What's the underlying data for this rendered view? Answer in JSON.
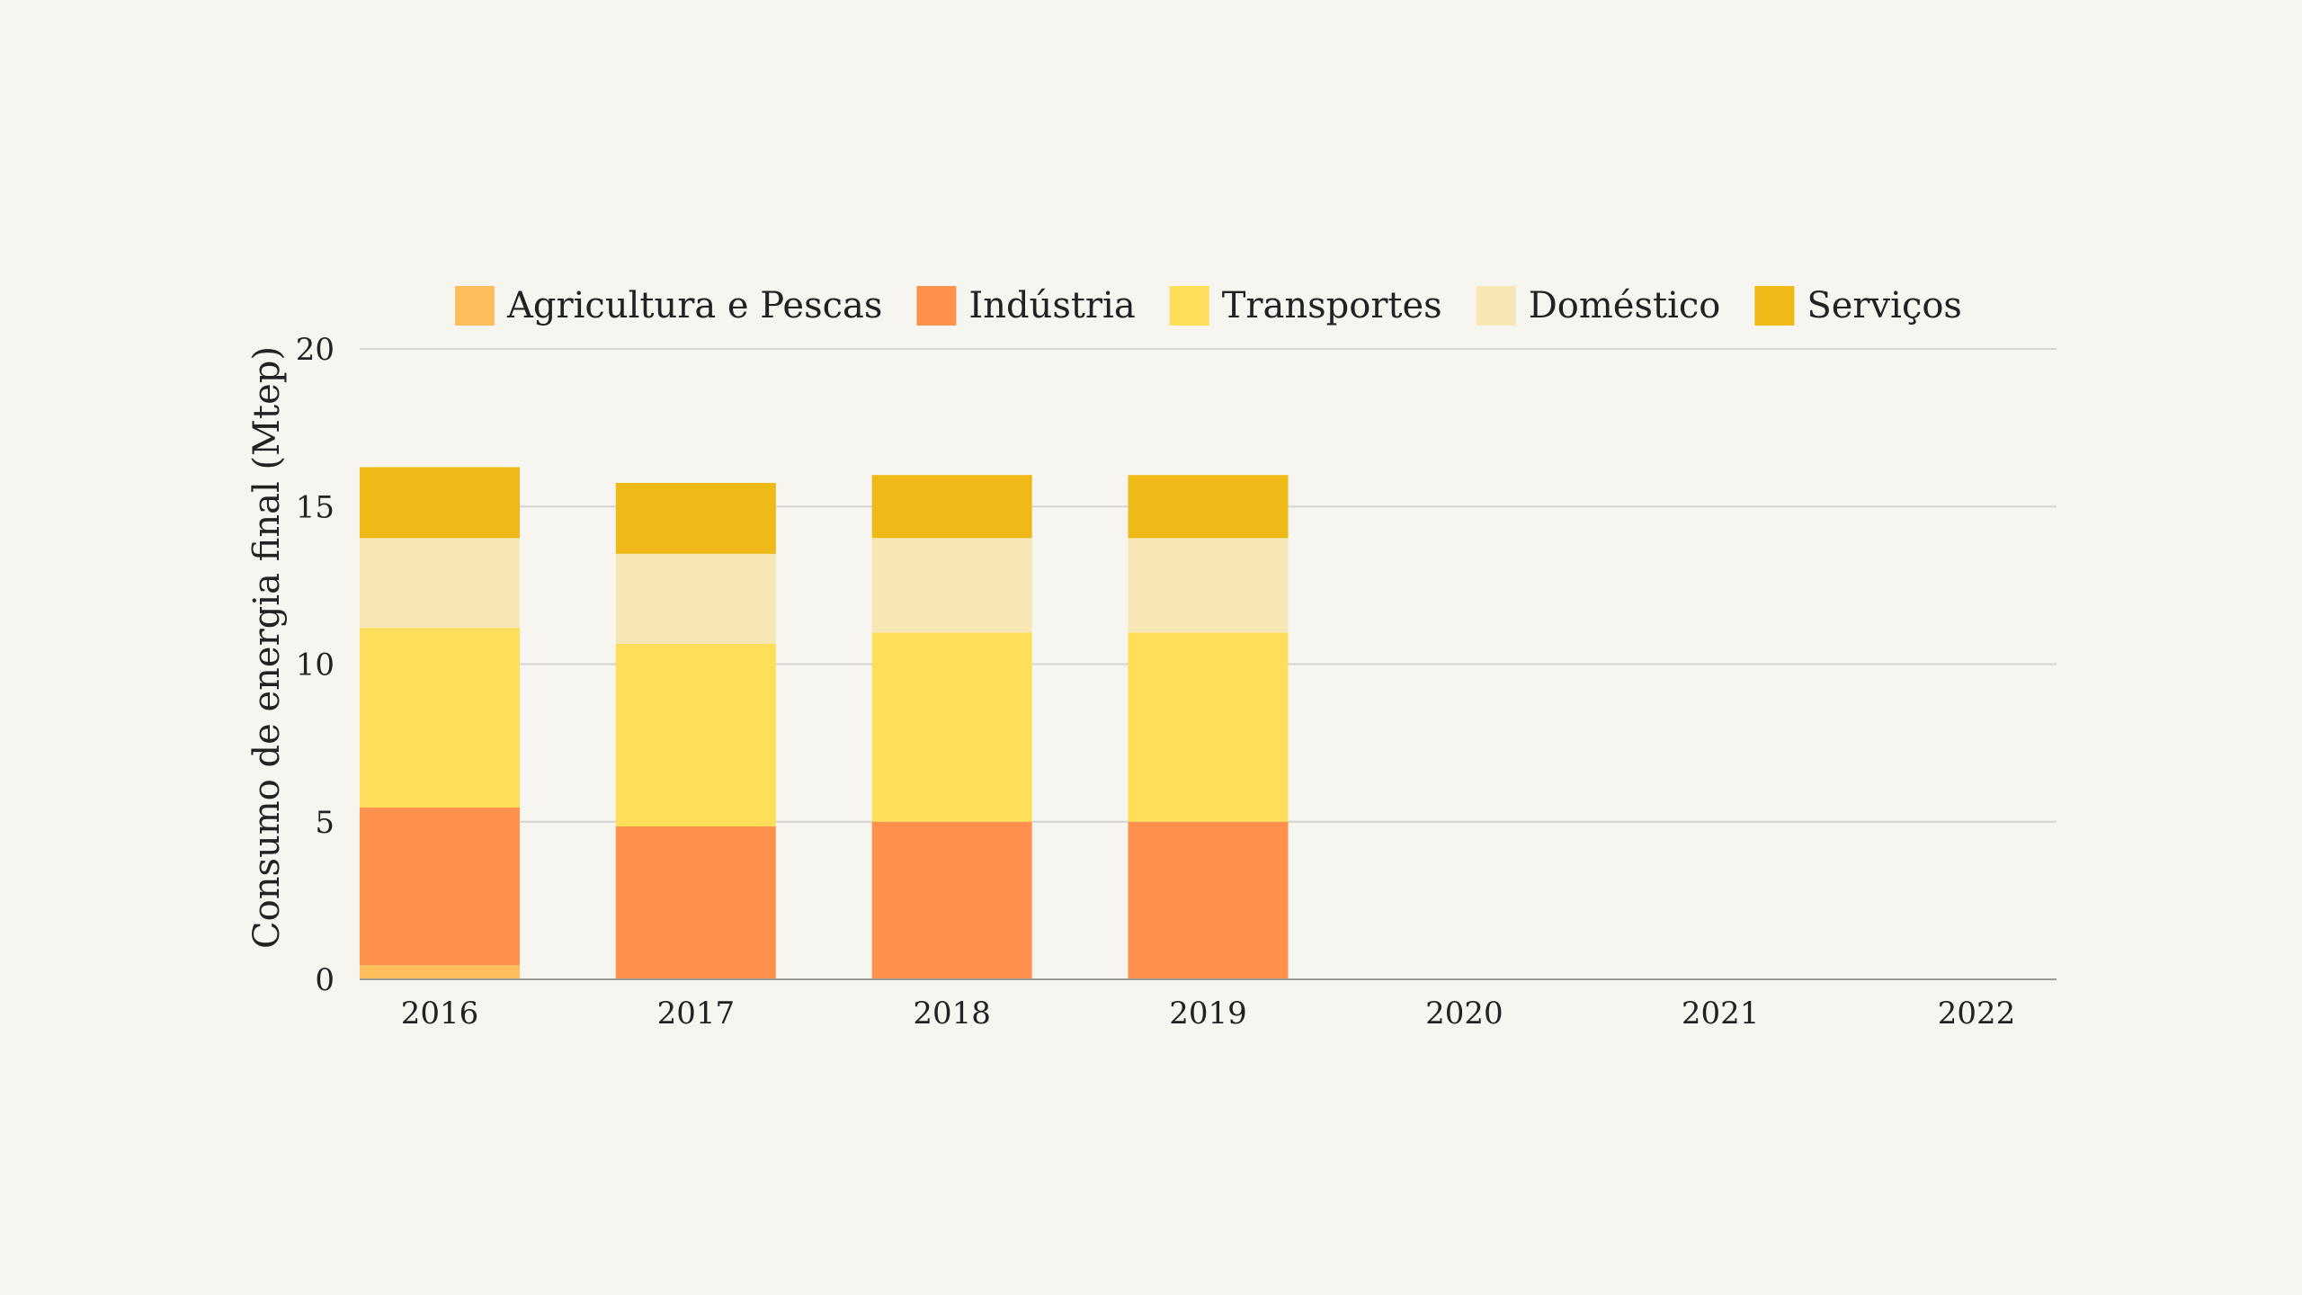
{
  "colors": {
    "background": "#F6F5F0",
    "gridline": "#D4D4D0",
    "axis": "#9A9A96",
    "text": "#222222"
  },
  "chart_data": {
    "type": "bar",
    "stacked": true,
    "categories": [
      "2016",
      "2017",
      "2018",
      "2019",
      "2020",
      "2021",
      "2022"
    ],
    "series": [
      {
        "name": "Agricultura e Pescas",
        "color": "#FFBE5C",
        "values": [
          0.45,
          0,
          0,
          0,
          null,
          null,
          null
        ]
      },
      {
        "name": "Indústria",
        "color": "#FF914D",
        "values": [
          5.0,
          4.85,
          5.0,
          5.0,
          null,
          null,
          null
        ]
      },
      {
        "name": "Transportes",
        "color": "#FFDE59",
        "values": [
          5.7,
          5.8,
          6.0,
          6.0,
          null,
          null,
          null
        ]
      },
      {
        "name": "Doméstico",
        "color": "#F7E6B6",
        "values": [
          2.85,
          2.85,
          3.0,
          3.0,
          null,
          null,
          null
        ]
      },
      {
        "name": "Serviços",
        "color": "#EFB918",
        "values": [
          2.25,
          2.25,
          2.0,
          2.0,
          null,
          null,
          null
        ]
      }
    ],
    "ylabel": "Consumo de energia final (Mtep)",
    "xlabel": "",
    "ylim": [
      0,
      20
    ],
    "yticks": [
      "0",
      "5",
      "10",
      "15",
      "20"
    ],
    "grid": true,
    "legend_position": "top"
  }
}
